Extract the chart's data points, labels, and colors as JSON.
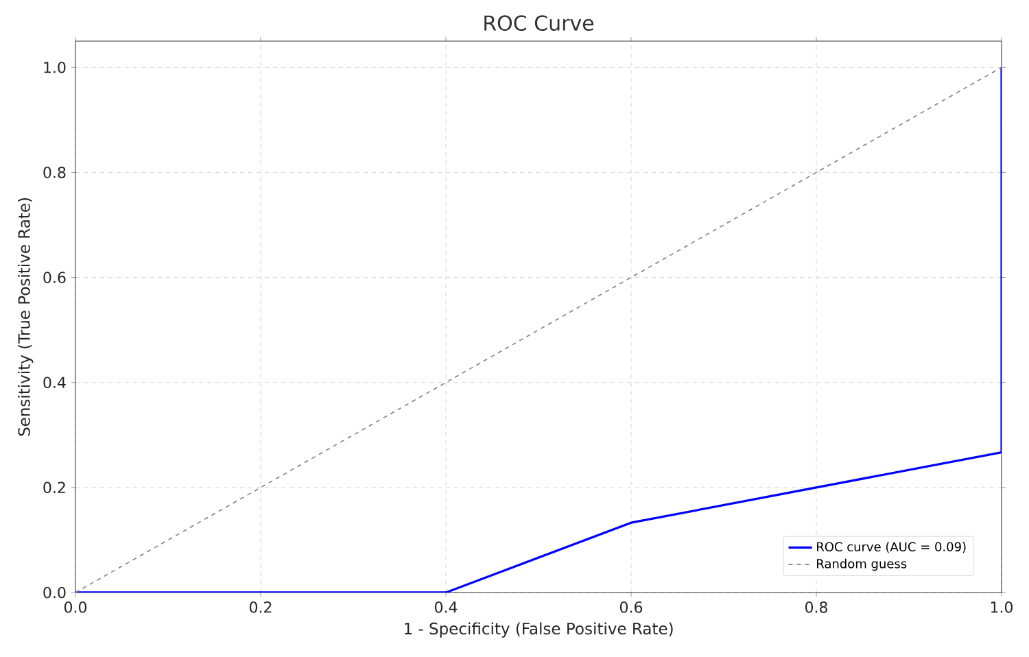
{
  "chart_data": {
    "type": "line",
    "title": "ROC Curve",
    "xlabel": "1 - Specificity (False Positive Rate)",
    "ylabel": "Sensitivity (True Positive Rate)",
    "xlim": [
      0,
      1
    ],
    "ylim": [
      0,
      1.05
    ],
    "xticks": [
      {
        "value": 0,
        "label": "0.0"
      },
      0.2,
      0.4,
      0.6,
      0.8,
      {
        "value": 1,
        "label": "1.0"
      }
    ],
    "yticks": [
      {
        "value": 0,
        "label": "0.0"
      },
      0.2,
      0.4,
      0.6,
      0.8,
      {
        "value": 1,
        "label": "1.0"
      }
    ],
    "grid": true,
    "legend": "bottom right",
    "series": [
      {
        "name": "ROC curve (AUC = 0.09)",
        "color": "#0000ff",
        "line_style": "solid",
        "x": [
          0,
          0.4,
          0.6,
          1.0,
          1.0
        ],
        "values": [
          0,
          0,
          0.133,
          0.267,
          1.0
        ]
      },
      {
        "name": "Random guess",
        "color": "#808080",
        "line_style": "dashed",
        "x": [
          0,
          1
        ],
        "values": [
          0,
          1
        ]
      }
    ]
  }
}
